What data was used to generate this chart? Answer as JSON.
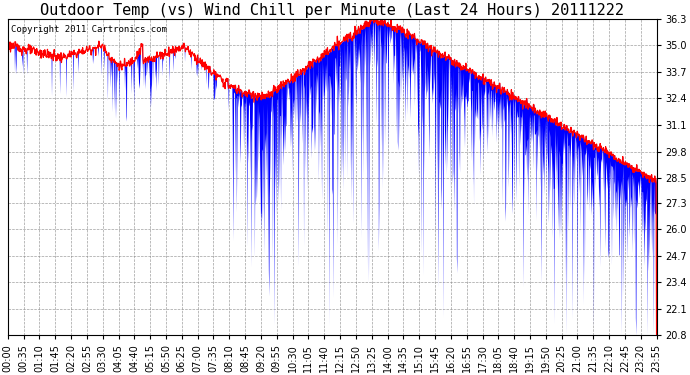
{
  "title": "Outdoor Temp (vs) Wind Chill per Minute (Last 24 Hours) 20111222",
  "copyright_text": "Copyright 2011 Cartronics.com",
  "ylim": [
    20.8,
    36.3
  ],
  "yticks": [
    20.8,
    22.1,
    23.4,
    24.7,
    26.0,
    27.3,
    28.5,
    29.8,
    31.1,
    32.4,
    33.7,
    35.0,
    36.3
  ],
  "xtick_labels": [
    "00:00",
    "00:35",
    "01:10",
    "01:45",
    "02:20",
    "02:55",
    "03:30",
    "04:05",
    "04:40",
    "05:15",
    "05:50",
    "06:25",
    "07:00",
    "07:35",
    "08:10",
    "08:45",
    "09:20",
    "09:55",
    "10:30",
    "11:05",
    "11:40",
    "12:15",
    "12:50",
    "13:25",
    "14:00",
    "14:35",
    "15:10",
    "15:45",
    "16:20",
    "16:55",
    "17:30",
    "18:05",
    "18:40",
    "19:15",
    "19:50",
    "20:25",
    "21:00",
    "21:35",
    "22:10",
    "22:45",
    "23:20",
    "23:55"
  ],
  "outdoor_color": "#ff0000",
  "windchill_color": "#0000ff",
  "background_color": "#ffffff",
  "grid_color": "#888888",
  "title_fontsize": 11,
  "tick_fontsize": 7,
  "copyright_fontsize": 6.5
}
